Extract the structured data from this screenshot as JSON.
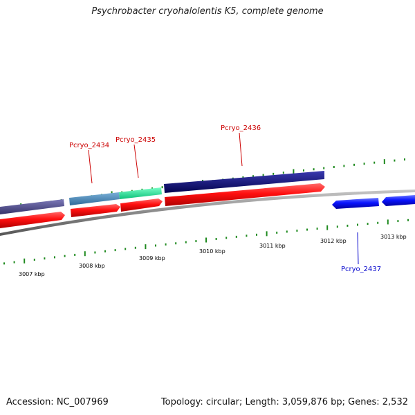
{
  "title": "Psychrobacter cryohalolentis K5, complete genome",
  "footer": {
    "accession": "Accession: NC_007969",
    "summary": "Topology: circular; Length: 3,059,876 bp; Genes: 2,532"
  },
  "scale_labels": [
    "3007 kbp",
    "3008 kbp",
    "3009 kbp",
    "3010 kbp",
    "3011 kbp",
    "3012 kbp",
    "3013 kbp"
  ],
  "gene_labels": [
    {
      "name": "Pcryo_2434",
      "color": "#cc0000"
    },
    {
      "name": "Pcryo_2435",
      "color": "#cc0000"
    },
    {
      "name": "Pcryo_2436",
      "color": "#cc0000"
    },
    {
      "name": "Pcryo_2437",
      "color": "#0000cc"
    }
  ],
  "colors": {
    "backbone": "#888888",
    "forward_cds": "#ff0000",
    "reverse_cds": "#0a14ff",
    "cog_bar_1": "#4d4a8c",
    "cog_bar_2": "#4a8cbf",
    "cog_bar_3": "#1cf09a",
    "cog_bar_4": "#0a0a7a",
    "tick": "#1f8a1f"
  }
}
